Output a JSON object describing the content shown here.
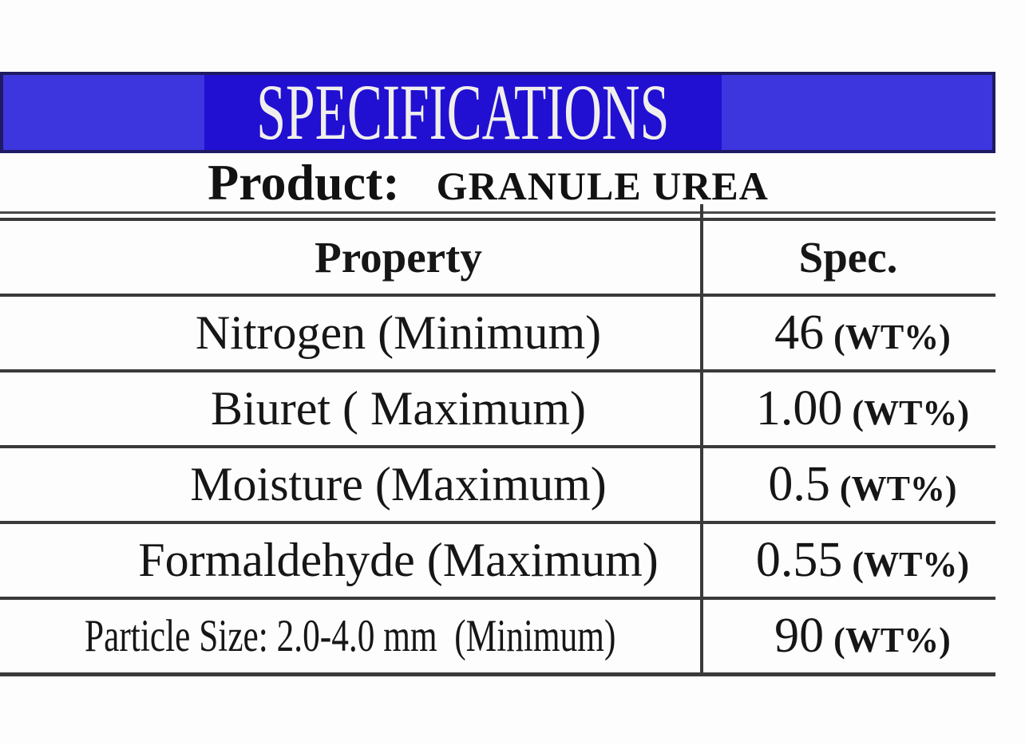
{
  "banner": {
    "title": "SPECIFICATIONS",
    "colors": {
      "outer": "#3d35de",
      "inner": "#2110d2",
      "border": "#1e1b63",
      "text": "#f1efeb"
    }
  },
  "product": {
    "label": "Product:",
    "value": "GRANULE UREA"
  },
  "table": {
    "property_header": "Property",
    "spec_header": "Spec.",
    "rows": [
      {
        "property": "Nitrogen (Minimum)",
        "spec_value": "46",
        "spec_unit": "(WT%)"
      },
      {
        "property": "Biuret ( Maximum)",
        "spec_value": "1.00",
        "spec_unit": "(WT%)"
      },
      {
        "property": "Moisture (Maximum)",
        "spec_value": "0.5",
        "spec_unit": "(WT%)"
      },
      {
        "property": "Formaldehyde (Maximum)",
        "spec_value": "0.55",
        "spec_unit": "(WT%)"
      },
      {
        "property": "Particle Size: 2.0-4.0 mm  (Minimum)",
        "spec_value": "90",
        "spec_unit": "(WT%)"
      }
    ]
  }
}
